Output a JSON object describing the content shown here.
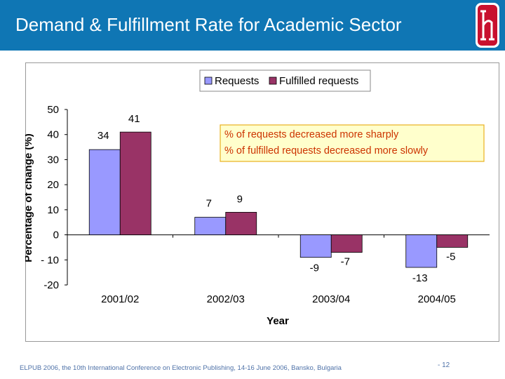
{
  "slide": {
    "title": "Demand & Fulfillment Rate for Academic Sector",
    "footer": "ELPUB 2006, the 10th International Conference on Electronic Publishing, 14-16 June 2006, Bansko, Bulgaria",
    "page_number": "- 12"
  },
  "colors": {
    "header": "#0f76b4",
    "requests": "#9999ff",
    "fulfilled": "#993366",
    "annotation_bg": "#ffffcc",
    "annotation_border": "#e8b020",
    "annotation_text": "#cc3300",
    "logo": "#c8102e"
  },
  "chart_data": {
    "type": "bar",
    "title": "",
    "xlabel": "Year",
    "ylabel": "Percentage of change (%)",
    "ylim": [
      -20,
      50
    ],
    "yticks": [
      -20,
      -10,
      0,
      10,
      20,
      30,
      40,
      50
    ],
    "ytick_labels": [
      "-20",
      "- 10",
      "0",
      "10",
      "20",
      "30",
      "40",
      "50"
    ],
    "categories": [
      "2001/02",
      "2002/03",
      "2003/04",
      "2004/05"
    ],
    "series": [
      {
        "name": "Requests",
        "values": [
          34,
          7,
          -9,
          -13
        ],
        "labels": [
          "34",
          "7",
          "-9",
          "-13"
        ]
      },
      {
        "name": "Fulfilled requests",
        "values": [
          41,
          9,
          -7,
          -5
        ],
        "labels": [
          "41",
          "9",
          "-7",
          "-5"
        ]
      }
    ],
    "legend": "top",
    "annotation": [
      "% of requests decreased more sharply",
      "% of fulfilled requests decreased more slowly"
    ]
  }
}
